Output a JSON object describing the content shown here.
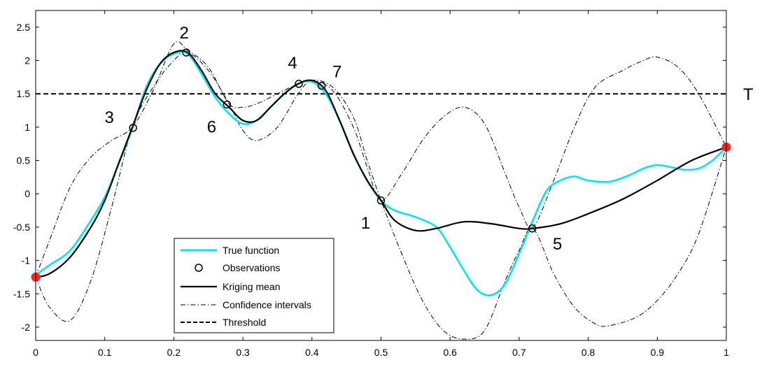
{
  "chart_data": {
    "type": "line",
    "xlim": [
      0,
      1
    ],
    "ylim": [
      -2.2,
      2.75
    ],
    "grid": false,
    "x_ticks": [
      "0",
      "0.1",
      "0.2",
      "0.3",
      "0.4",
      "0.5",
      "0.6",
      "0.7",
      "0.8",
      "0.9",
      "1"
    ],
    "y_ticks": [
      "-2",
      "-1.5",
      "-1",
      "-0.5",
      "0",
      "0.5",
      "1",
      "1.5",
      "2",
      "2.5"
    ],
    "threshold": {
      "value": 1.5,
      "label": "T"
    },
    "series": [
      {
        "name": "True function",
        "color": "#00e5ee",
        "style": "solid",
        "x": [
          0,
          0.02,
          0.05,
          0.08,
          0.1,
          0.12,
          0.14,
          0.16,
          0.18,
          0.2,
          0.22,
          0.24,
          0.26,
          0.28,
          0.3,
          0.32,
          0.34,
          0.36,
          0.38,
          0.4,
          0.42,
          0.44,
          0.46,
          0.48,
          0.5,
          0.52,
          0.55,
          0.58,
          0.6,
          0.62,
          0.64,
          0.66,
          0.68,
          0.7,
          0.72,
          0.74,
          0.76,
          0.78,
          0.8,
          0.83,
          0.86,
          0.88,
          0.9,
          0.92,
          0.94,
          0.96,
          0.98,
          1
        ],
        "y": [
          -1.22,
          -1.07,
          -0.85,
          -0.4,
          -0.05,
          0.45,
          0.98,
          1.6,
          1.95,
          2.1,
          2.1,
          1.8,
          1.45,
          1.2,
          1.05,
          1.1,
          1.3,
          1.5,
          1.65,
          1.68,
          1.5,
          1.1,
          0.6,
          0.2,
          -0.1,
          -0.25,
          -0.35,
          -0.5,
          -0.8,
          -1.15,
          -1.45,
          -1.52,
          -1.35,
          -0.9,
          -0.4,
          0.05,
          0.2,
          0.26,
          0.2,
          0.18,
          0.28,
          0.38,
          0.43,
          0.4,
          0.36,
          0.38,
          0.5,
          0.7
        ]
      },
      {
        "name": "Kriging mean",
        "color": "#000000",
        "style": "solid",
        "x": [
          0,
          0.02,
          0.05,
          0.08,
          0.1,
          0.12,
          0.14,
          0.16,
          0.18,
          0.2,
          0.22,
          0.24,
          0.26,
          0.28,
          0.3,
          0.32,
          0.34,
          0.36,
          0.38,
          0.4,
          0.42,
          0.44,
          0.46,
          0.48,
          0.5,
          0.52,
          0.55,
          0.58,
          0.62,
          0.66,
          0.7,
          0.72,
          0.76,
          0.8,
          0.85,
          0.9,
          0.95,
          1
        ],
        "y": [
          -1.25,
          -1.2,
          -0.95,
          -0.5,
          -0.1,
          0.45,
          1.0,
          1.55,
          1.95,
          2.12,
          2.12,
          1.85,
          1.5,
          1.3,
          1.1,
          1.1,
          1.3,
          1.5,
          1.65,
          1.7,
          1.55,
          1.1,
          0.6,
          0.2,
          -0.1,
          -0.4,
          -0.55,
          -0.52,
          -0.42,
          -0.45,
          -0.52,
          -0.52,
          -0.45,
          -0.3,
          -0.08,
          0.2,
          0.5,
          0.7
        ]
      },
      {
        "name": "Confidence intervals",
        "color": "#000000",
        "style": "dashdot",
        "x": [
          0,
          0.02,
          0.05,
          0.08,
          0.11,
          0.14,
          0.17,
          0.2,
          0.22,
          0.25,
          0.28,
          0.3,
          0.32,
          0.35,
          0.38,
          0.4,
          0.43,
          0.46,
          0.48,
          0.5,
          0.53,
          0.56,
          0.59,
          0.62,
          0.65,
          0.68,
          0.7,
          0.72,
          0.75,
          0.78,
          0.81,
          0.85,
          0.88,
          0.9,
          0.93,
          0.96,
          1
        ],
        "y": [
          -1.25,
          -0.7,
          0.1,
          0.55,
          0.8,
          1.0,
          1.55,
          2.25,
          2.15,
          1.9,
          1.35,
          1.3,
          1.35,
          1.5,
          1.65,
          1.7,
          1.55,
          1.0,
          0.4,
          -0.1,
          0.3,
          0.8,
          1.15,
          1.3,
          1.05,
          0.3,
          -0.2,
          -0.5,
          0.2,
          1.0,
          1.6,
          1.85,
          2.0,
          2.05,
          1.9,
          1.5,
          0.7
        ]
      },
      {
        "name": "Confidence intervals",
        "color": "#000000",
        "style": "dashdot",
        "x": [
          0,
          0.02,
          0.05,
          0.08,
          0.11,
          0.14,
          0.17,
          0.2,
          0.22,
          0.25,
          0.28,
          0.3,
          0.32,
          0.35,
          0.38,
          0.4,
          0.43,
          0.46,
          0.48,
          0.5,
          0.53,
          0.56,
          0.59,
          0.62,
          0.65,
          0.68,
          0.7,
          0.72,
          0.75,
          0.78,
          0.81,
          0.83,
          0.87,
          0.9,
          0.93,
          0.96,
          1
        ],
        "y": [
          -1.25,
          -1.7,
          -1.9,
          -1.3,
          -0.2,
          1.0,
          1.6,
          2.0,
          2.12,
          1.85,
          1.35,
          0.95,
          0.8,
          1.0,
          1.5,
          1.7,
          1.6,
          1.15,
          0.5,
          -0.1,
          -0.9,
          -1.6,
          -2.05,
          -2.18,
          -2.05,
          -1.3,
          -0.85,
          -0.52,
          -1.2,
          -1.7,
          -1.95,
          -1.98,
          -1.85,
          -1.6,
          -1.2,
          -0.6,
          0.7
        ]
      }
    ],
    "observations": {
      "name": "Observations",
      "points": [
        {
          "label": "1",
          "x": 0.5,
          "y": -0.1
        },
        {
          "label": "2",
          "x": 0.218,
          "y": 2.12
        },
        {
          "label": "3",
          "x": 0.141,
          "y": 0.99
        },
        {
          "label": "4",
          "x": 0.381,
          "y": 1.65
        },
        {
          "label": "5",
          "x": 0.719,
          "y": -0.52
        },
        {
          "label": "6",
          "x": 0.277,
          "y": 1.34
        },
        {
          "label": "7",
          "x": 0.414,
          "y": 1.62
        }
      ]
    },
    "endpoints": {
      "color": "#ff2020",
      "points": [
        {
          "x": 0,
          "y": -1.25
        },
        {
          "x": 1,
          "y": 0.7
        }
      ]
    },
    "legend": {
      "placement": "bottom-center",
      "entries": [
        "True function",
        "Observations",
        "Kriging mean",
        "Confidence intervals",
        "Threshold"
      ]
    }
  }
}
